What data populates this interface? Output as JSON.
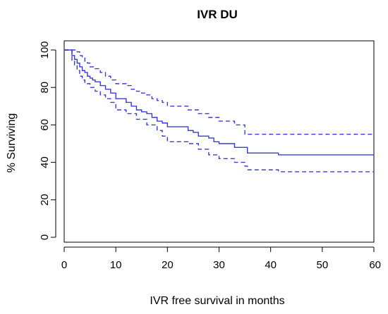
{
  "chart_data": {
    "type": "line",
    "title": "IVR DU",
    "xlabel": "IVR free survival in months",
    "ylabel": "% Surviving",
    "xlim": [
      0,
      60
    ],
    "ylim": [
      0,
      100
    ],
    "x_ticks": [
      "0",
      "10",
      "20",
      "30",
      "40",
      "50",
      "60"
    ],
    "y_ticks": [
      "0",
      "20",
      "40",
      "60",
      "80",
      "100"
    ],
    "x_tick_values": [
      0,
      10,
      20,
      30,
      40,
      50,
      60
    ],
    "y_tick_values": [
      0,
      20,
      40,
      60,
      80,
      100
    ],
    "grid": false,
    "colors": {
      "series": "#3b3bd6"
    },
    "series": [
      {
        "style": "solid",
        "x": [
          0,
          1,
          1.5,
          2,
          2.5,
          3,
          3.5,
          4,
          4.5,
          5,
          5.5,
          6,
          7,
          8,
          9,
          10,
          11,
          12,
          13,
          14,
          15,
          16,
          17,
          18,
          19,
          20,
          22,
          24,
          25,
          26,
          28,
          29,
          30,
          32,
          33,
          35,
          35.5,
          41.5,
          60
        ],
        "y": [
          100,
          100,
          97,
          95,
          93,
          91,
          89,
          88,
          86,
          85,
          84,
          83,
          81,
          79,
          77,
          74,
          74,
          72,
          70,
          68,
          67,
          66,
          64,
          62,
          61,
          59,
          59,
          57,
          56,
          54,
          53,
          51,
          50,
          50,
          48,
          48,
          45,
          44,
          44
        ]
      },
      {
        "style": "dashed",
        "x": [
          0,
          2,
          2.5,
          3,
          3.5,
          4,
          4.5,
          5,
          6,
          7,
          8,
          9,
          10,
          12,
          13,
          14,
          15,
          16,
          17,
          18,
          19,
          20,
          24,
          26,
          28,
          30,
          33,
          35,
          60
        ],
        "y": [
          100,
          100,
          99,
          97,
          96,
          94,
          93,
          91,
          90,
          88,
          86,
          84,
          82,
          81,
          79,
          78,
          77,
          76,
          74,
          73,
          72,
          70,
          68,
          66,
          64,
          62,
          60,
          55,
          54
        ]
      },
      {
        "style": "dashed",
        "x": [
          0,
          1,
          1.5,
          2,
          2.5,
          3,
          3.5,
          4,
          5,
          6,
          7,
          8,
          9,
          10,
          12,
          14,
          16,
          18,
          19,
          20,
          24,
          26,
          28,
          30,
          33,
          35,
          35.5,
          41.5,
          60
        ],
        "y": [
          100,
          100,
          94,
          92,
          89,
          86,
          84,
          82,
          80,
          78,
          76,
          74,
          72,
          68,
          66,
          63,
          60,
          57,
          54,
          51,
          50,
          47,
          44,
          42,
          40,
          38,
          36,
          35,
          35
        ]
      }
    ]
  }
}
